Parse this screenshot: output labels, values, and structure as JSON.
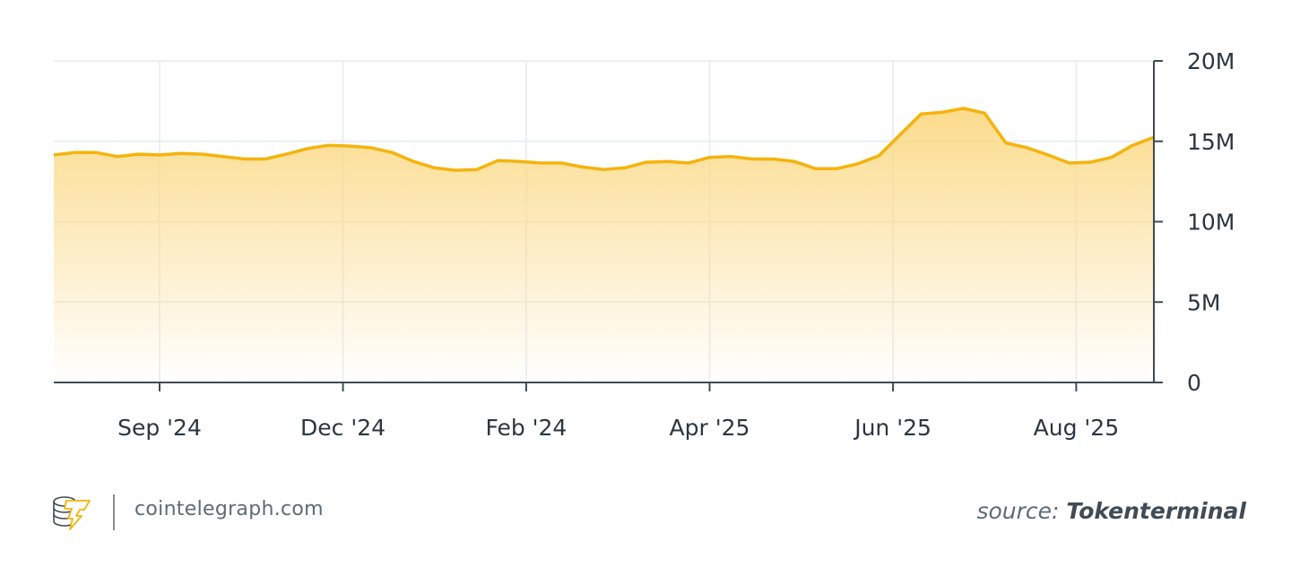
{
  "chart_data": {
    "type": "area",
    "title": "",
    "xlabel": "",
    "ylabel": "",
    "ylim": [
      0,
      20000000
    ],
    "yticks": [
      {
        "value": 0,
        "label": "0"
      },
      {
        "value": 5000000,
        "label": "5M"
      },
      {
        "value": 10000000,
        "label": "10M"
      },
      {
        "value": 15000000,
        "label": "15M"
      },
      {
        "value": 20000000,
        "label": "20M"
      }
    ],
    "xticks": [
      {
        "index": 5,
        "label": "Sep '24"
      },
      {
        "index": 13.67,
        "label": "Dec '24"
      },
      {
        "index": 22.33,
        "label": "Feb '24"
      },
      {
        "index": 31,
        "label": "Apr '25"
      },
      {
        "index": 39.67,
        "label": "Jun '25"
      },
      {
        "index": 48.33,
        "label": "Aug '25"
      }
    ],
    "grid": true,
    "colors": {
      "line": "#f5b30c",
      "fill": "#fbd985",
      "axis": "#3d4a55",
      "grid": "#eceff2"
    },
    "values": [
      14.15,
      14.3,
      14.3,
      14.05,
      14.2,
      14.15,
      14.25,
      14.2,
      14.05,
      13.9,
      13.9,
      14.2,
      14.55,
      14.75,
      14.7,
      14.6,
      14.3,
      13.75,
      13.35,
      13.2,
      13.25,
      13.8,
      13.75,
      13.65,
      13.65,
      13.4,
      13.25,
      13.35,
      13.7,
      13.75,
      13.65,
      14.0,
      14.05,
      13.9,
      13.9,
      13.75,
      13.3,
      13.3,
      13.6,
      14.1,
      15.4,
      16.7,
      16.8,
      17.05,
      16.75,
      14.9,
      14.6,
      14.15,
      13.65,
      13.7,
      14.0,
      14.75,
      15.25
    ],
    "value_unit": "M"
  },
  "footer": {
    "site": "cointelegraph.com",
    "source_prefix": "source:",
    "source_name": "Tokenterminal"
  }
}
